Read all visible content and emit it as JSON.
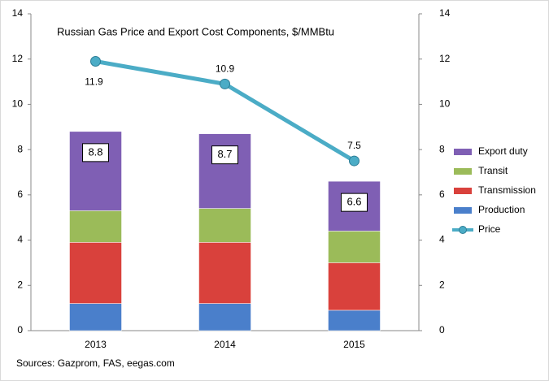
{
  "chart_data": {
    "type": "bar",
    "stacked": true,
    "title": "Russian Gas Price and Export Cost Components, $/MMBtu",
    "source": "Sources: Gazprom, FAS, eegas.com",
    "categories": [
      "2013",
      "2014",
      "2015"
    ],
    "series": [
      {
        "name": "Production",
        "type": "bar",
        "color": "#4a7fcb",
        "values": [
          1.2,
          1.2,
          0.9
        ]
      },
      {
        "name": "Transmission",
        "type": "bar",
        "color": "#d9413c",
        "values": [
          2.7,
          2.7,
          2.1
        ]
      },
      {
        "name": "Transit",
        "type": "bar",
        "color": "#9bbb59",
        "values": [
          1.4,
          1.5,
          1.4
        ]
      },
      {
        "name": "Export duty",
        "type": "bar",
        "color": "#7f5fb4",
        "values": [
          3.5,
          3.3,
          2.2
        ]
      },
      {
        "name": "Price",
        "type": "line",
        "axis": "y2",
        "color": "#4bacc6",
        "values": [
          11.9,
          10.9,
          7.5
        ]
      }
    ],
    "totals": [
      8.8,
      8.7,
      6.6
    ],
    "ylim": [
      0,
      14
    ],
    "yticks": [
      0,
      2,
      4,
      6,
      8,
      10,
      12,
      14
    ],
    "y2lim": [
      0,
      14
    ],
    "y2ticks": [
      0,
      2,
      4,
      6,
      8,
      10,
      12,
      14
    ],
    "legend": "right",
    "grid": false
  }
}
